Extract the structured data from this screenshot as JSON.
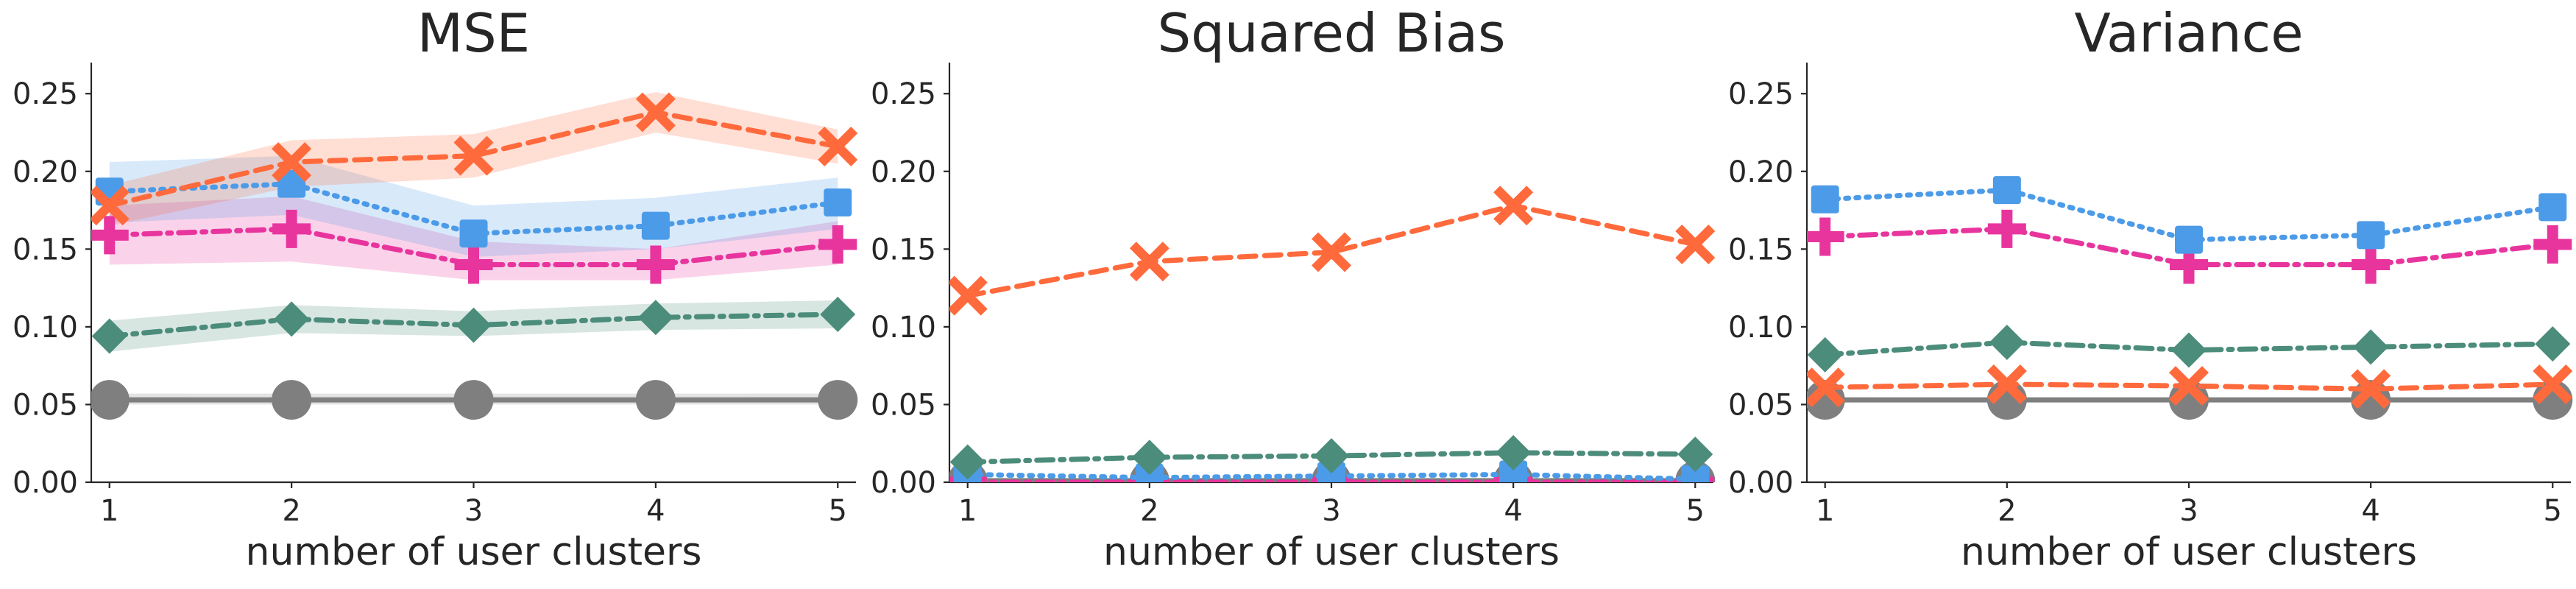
{
  "chart_data": [
    {
      "type": "line",
      "title": "MSE",
      "xlabel": "number of user clusters",
      "ylabel": "",
      "x": [
        1,
        2,
        3,
        4,
        5
      ],
      "xticks": [
        "1",
        "2",
        "3",
        "4",
        "5"
      ],
      "ylim": [
        0,
        0.27
      ],
      "yticks": [
        "0.00",
        "0.05",
        "0.10",
        "0.15",
        "0.20",
        "0.25"
      ],
      "grid": false,
      "series": [
        {
          "values": [
            0.053,
            0.053,
            0.053,
            0.053,
            0.053
          ],
          "lower": [
            0.05,
            0.05,
            0.05,
            0.05,
            0.05
          ],
          "upper": [
            0.057,
            0.057,
            0.057,
            0.057,
            0.057
          ],
          "color": "#7f7f7f",
          "marker": "circle",
          "dash": "solid"
        },
        {
          "values": [
            0.094,
            0.105,
            0.101,
            0.106,
            0.108
          ],
          "lower": [
            0.084,
            0.096,
            0.094,
            0.098,
            0.099
          ],
          "upper": [
            0.104,
            0.114,
            0.11,
            0.115,
            0.117
          ],
          "color": "#4c8c7a",
          "marker": "diamond",
          "dash": "dashdot"
        },
        {
          "values": [
            0.159,
            0.163,
            0.14,
            0.14,
            0.153
          ],
          "lower": [
            0.14,
            0.142,
            0.13,
            0.13,
            0.14
          ],
          "upper": [
            0.178,
            0.184,
            0.155,
            0.15,
            0.168
          ],
          "color": "#e8359e",
          "marker": "plus",
          "dash": "dashdot"
        },
        {
          "values": [
            0.187,
            0.192,
            0.16,
            0.165,
            0.18
          ],
          "lower": [
            0.167,
            0.172,
            0.145,
            0.15,
            0.163
          ],
          "upper": [
            0.206,
            0.21,
            0.178,
            0.183,
            0.196
          ],
          "color": "#4c9be8",
          "marker": "square",
          "dash": "dotted"
        },
        {
          "values": [
            0.178,
            0.206,
            0.21,
            0.238,
            0.216
          ],
          "lower": [
            0.165,
            0.19,
            0.196,
            0.225,
            0.205
          ],
          "upper": [
            0.191,
            0.22,
            0.224,
            0.251,
            0.227
          ],
          "color": "#ff6a3d",
          "marker": "x",
          "dash": "dashed"
        }
      ]
    },
    {
      "type": "line",
      "title": "Squared Bias",
      "xlabel": "number of user clusters",
      "ylabel": "",
      "x": [
        1,
        2,
        3,
        4,
        5
      ],
      "xticks": [
        "1",
        "2",
        "3",
        "4",
        "5"
      ],
      "ylim": [
        0,
        0.27
      ],
      "yticks": [
        "0.00",
        "0.05",
        "0.10",
        "0.15",
        "0.20",
        "0.25"
      ],
      "grid": false,
      "series": [
        {
          "values": [
            0.001,
            0.001,
            0.001,
            0.001,
            0.001
          ],
          "color": "#7f7f7f",
          "marker": "circle",
          "dash": "solid"
        },
        {
          "values": [
            0.0,
            0.0,
            0.0,
            0.0,
            0.0
          ],
          "color": "#e8359e",
          "marker": "plus",
          "dash": "dashdot"
        },
        {
          "values": [
            0.005,
            0.003,
            0.004,
            0.005,
            0.002
          ],
          "color": "#4c9be8",
          "marker": "square",
          "dash": "dotted"
        },
        {
          "values": [
            0.013,
            0.016,
            0.017,
            0.019,
            0.018
          ],
          "color": "#4c8c7a",
          "marker": "diamond",
          "dash": "dashdot"
        },
        {
          "values": [
            0.12,
            0.142,
            0.148,
            0.178,
            0.153
          ],
          "color": "#ff6a3d",
          "marker": "x",
          "dash": "dashed"
        }
      ]
    },
    {
      "type": "line",
      "title": "Variance",
      "xlabel": "number of user clusters",
      "ylabel": "",
      "x": [
        1,
        2,
        3,
        4,
        5
      ],
      "xticks": [
        "1",
        "2",
        "3",
        "4",
        "5"
      ],
      "ylim": [
        0,
        0.27
      ],
      "yticks": [
        "0.00",
        "0.05",
        "0.10",
        "0.15",
        "0.20",
        "0.25"
      ],
      "grid": false,
      "series": [
        {
          "values": [
            0.053,
            0.053,
            0.053,
            0.053,
            0.053
          ],
          "color": "#7f7f7f",
          "marker": "circle",
          "dash": "solid"
        },
        {
          "values": [
            0.061,
            0.063,
            0.062,
            0.06,
            0.063
          ],
          "color": "#ff6a3d",
          "marker": "x",
          "dash": "dashed"
        },
        {
          "values": [
            0.082,
            0.09,
            0.085,
            0.087,
            0.089
          ],
          "color": "#4c8c7a",
          "marker": "diamond",
          "dash": "dashdot"
        },
        {
          "values": [
            0.158,
            0.163,
            0.14,
            0.14,
            0.153
          ],
          "color": "#e8359e",
          "marker": "plus",
          "dash": "dashdot"
        },
        {
          "values": [
            0.182,
            0.188,
            0.156,
            0.159,
            0.177
          ],
          "color": "#4c9be8",
          "marker": "square",
          "dash": "dotted"
        }
      ]
    }
  ]
}
